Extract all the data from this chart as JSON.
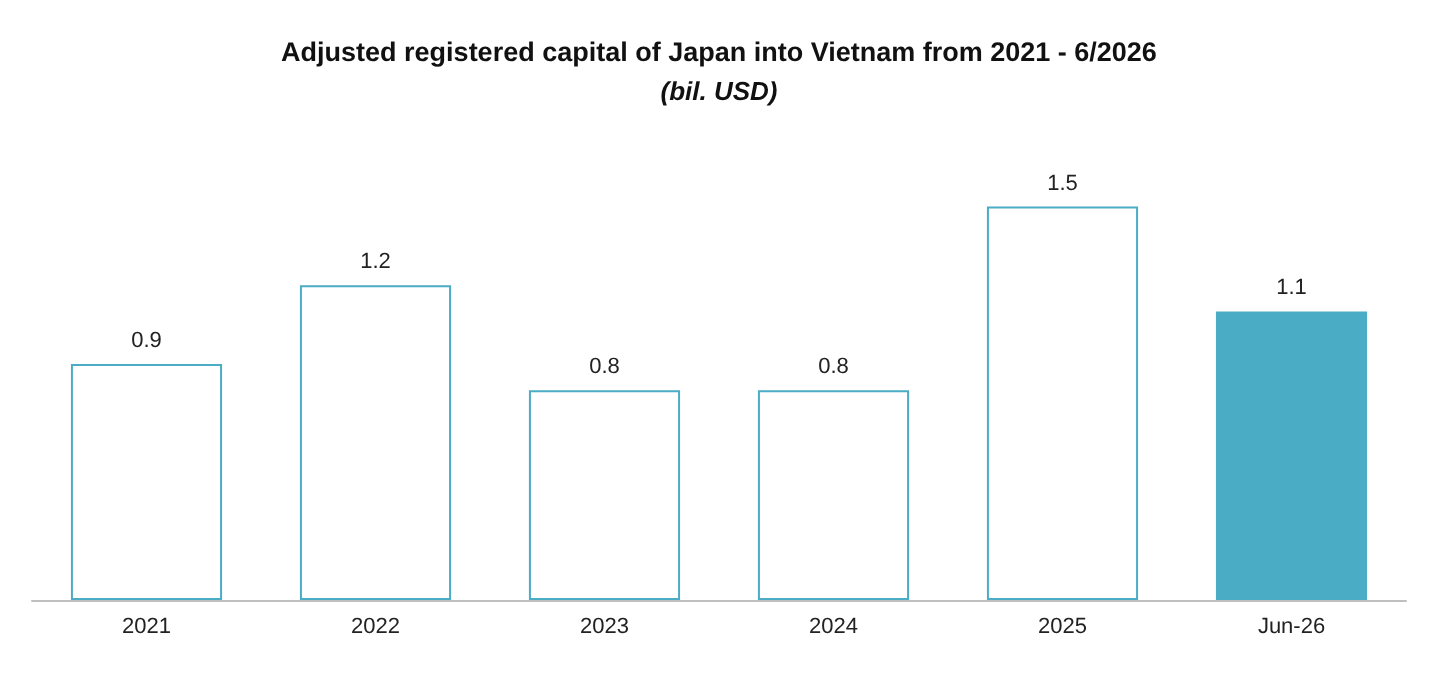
{
  "chart_data": {
    "type": "bar",
    "title": "Adjusted registered capital of Japan into Vietnam from 2021 - 6/2026",
    "subtitle": "(bil. USD)",
    "categories": [
      "2021",
      "2022",
      "2023",
      "2024",
      "2025",
      "Jun-26"
    ],
    "values": [
      0.9,
      1.2,
      0.8,
      0.8,
      1.5,
      1.1
    ],
    "color": "#4bacc6",
    "colors": [
      "#ffffff",
      "#ffffff",
      "#ffffff",
      "#ffffff",
      "#ffffff",
      "#4bacc6"
    ],
    "data_labels": true
  }
}
